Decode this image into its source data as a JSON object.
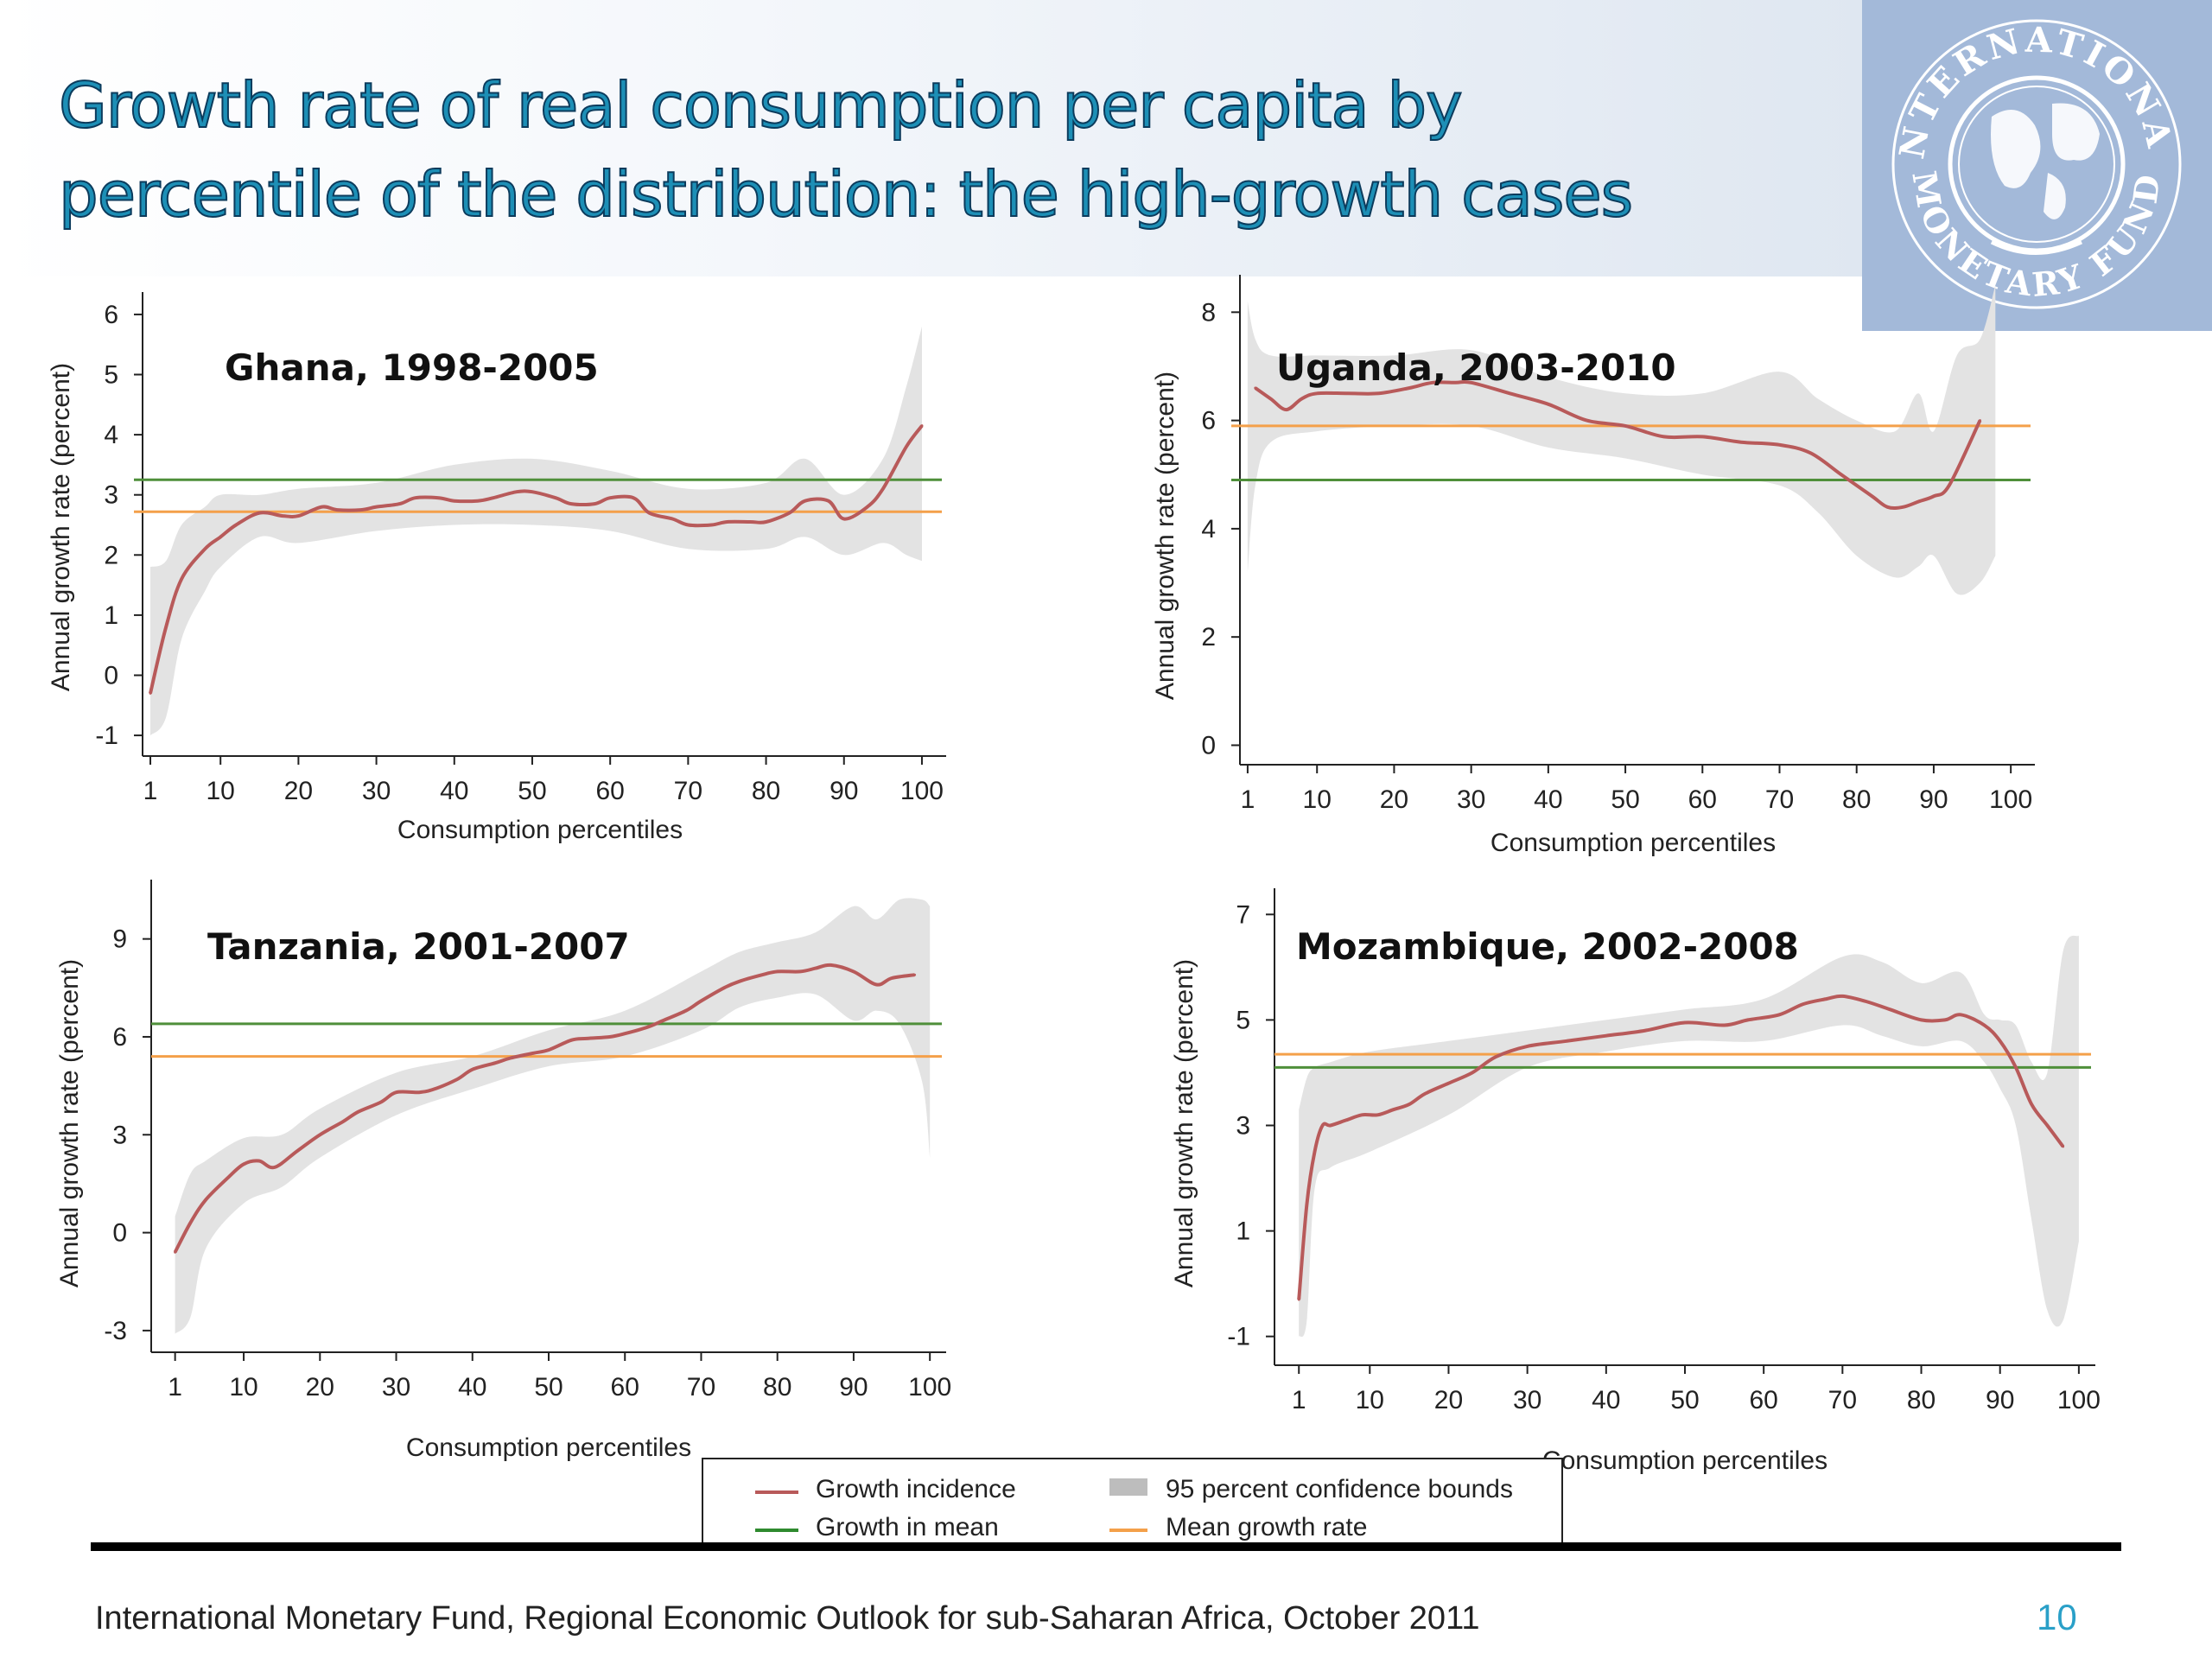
{
  "title_lines": [
    "Growth rate of real consumption per capita by",
    "percentile of the distribution: the high-growth cases"
  ],
  "colors": {
    "incidence": "#b85a5a",
    "mean_growth": "#f4a04a",
    "growth_in_mean": "#4f8f3a",
    "ci": "#e3e3e3",
    "title": "#1d8fb6",
    "page_number": "#2aa0c8"
  },
  "legend": {
    "incidence": "Growth incidence",
    "growth_in_mean": "Growth in mean",
    "ci": "95 percent confidence bounds",
    "mean_growth_rate": "Mean growth rate"
  },
  "source": "International Monetary Fund, Regional Economic Outlook for sub-Saharan Africa, October 2011",
  "page_number": "10",
  "logo": {
    "text_top": "INTERNATIONAL",
    "text_bottom": "MONETARY FUND"
  },
  "chart_data": [
    {
      "id": "ghana",
      "type": "line",
      "title": "Ghana, 1998-2005",
      "xlabel": "Consumption percentiles",
      "ylabel": "Annual growth rate (percent)",
      "xticks": [
        1,
        10,
        20,
        30,
        40,
        50,
        60,
        70,
        80,
        90,
        100
      ],
      "yticks": [
        -1,
        0,
        1,
        2,
        3,
        4,
        5,
        6
      ],
      "xlim": [
        0,
        102
      ],
      "ylim": [
        -1.2,
        6.2
      ],
      "legend": "bottom-center",
      "series": [
        {
          "name": "Growth incidence",
          "x": [
            1,
            3,
            5,
            8,
            10,
            12,
            15,
            18,
            20,
            23,
            25,
            28,
            30,
            33,
            35,
            38,
            40,
            43,
            45,
            48,
            50,
            53,
            55,
            58,
            60,
            63,
            65,
            68,
            70,
            73,
            75,
            78,
            80,
            83,
            85,
            88,
            90,
            93,
            95,
            98,
            100
          ],
          "y": [
            -0.3,
            0.8,
            1.6,
            2.1,
            2.3,
            2.5,
            2.7,
            2.65,
            2.65,
            2.8,
            2.75,
            2.75,
            2.8,
            2.85,
            2.95,
            2.95,
            2.9,
            2.9,
            2.95,
            3.05,
            3.05,
            2.95,
            2.85,
            2.85,
            2.95,
            2.95,
            2.7,
            2.6,
            2.5,
            2.5,
            2.55,
            2.55,
            2.55,
            2.7,
            2.9,
            2.9,
            2.6,
            2.8,
            3.1,
            3.8,
            4.15
          ]
        },
        {
          "name": "95 percent confidence bounds",
          "x": [
            1,
            3,
            5,
            8,
            10,
            15,
            20,
            30,
            40,
            50,
            60,
            70,
            80,
            85,
            90,
            95,
            98,
            100
          ],
          "upper": [
            1.8,
            1.9,
            2.5,
            2.8,
            3.0,
            3.0,
            3.1,
            3.2,
            3.5,
            3.6,
            3.4,
            3.1,
            3.2,
            3.6,
            3.0,
            3.6,
            4.8,
            5.8
          ],
          "lower": [
            -1.0,
            -0.7,
            0.6,
            1.4,
            1.8,
            2.3,
            2.2,
            2.4,
            2.5,
            2.5,
            2.4,
            2.1,
            2.1,
            2.3,
            2.0,
            2.2,
            2.0,
            1.9
          ]
        },
        {
          "name": "Growth in mean",
          "value": 3.25
        },
        {
          "name": "Mean growth rate",
          "value": 2.72
        }
      ]
    },
    {
      "id": "uganda",
      "type": "line",
      "title": "Uganda, 2003-2010",
      "xlabel": "Consumption percentiles",
      "ylabel": "Annual growth rate (percent)",
      "xticks": [
        1,
        10,
        20,
        30,
        40,
        50,
        60,
        70,
        80,
        90,
        100
      ],
      "yticks": [
        0,
        2,
        4,
        6,
        8
      ],
      "xlim": [
        0,
        102
      ],
      "ylim": [
        -0.2,
        8.5
      ],
      "legend": "bottom-center",
      "series": [
        {
          "name": "Growth incidence",
          "x": [
            2,
            4,
            6,
            8,
            10,
            14,
            18,
            22,
            25,
            28,
            30,
            35,
            40,
            45,
            50,
            55,
            60,
            65,
            70,
            74,
            78,
            82,
            84,
            86,
            88,
            90,
            92,
            96
          ],
          "y": [
            6.6,
            6.4,
            6.2,
            6.4,
            6.5,
            6.5,
            6.5,
            6.6,
            6.7,
            6.7,
            6.7,
            6.5,
            6.3,
            6.0,
            5.9,
            5.7,
            5.7,
            5.6,
            5.55,
            5.4,
            5.0,
            4.6,
            4.4,
            4.4,
            4.5,
            4.6,
            4.8,
            6.0
          ],
          "missing_note": ""
        },
        {
          "name": "95 percent confidence bounds",
          "x": [
            1,
            2,
            4,
            10,
            20,
            30,
            40,
            50,
            60,
            70,
            75,
            80,
            85,
            88,
            90,
            93,
            96,
            98
          ],
          "upper": [
            8.2,
            7.5,
            7.2,
            7.2,
            7.2,
            7.3,
            6.8,
            6.5,
            6.5,
            6.9,
            6.4,
            6.0,
            5.8,
            6.5,
            5.8,
            7.2,
            7.5,
            8.5
          ],
          "lower": [
            3.2,
            4.8,
            5.6,
            5.8,
            5.9,
            5.9,
            5.5,
            5.3,
            5.0,
            4.8,
            4.3,
            3.5,
            3.1,
            3.3,
            3.5,
            2.8,
            3.0,
            3.5
          ]
        },
        {
          "name": "Growth in mean",
          "value": 4.9
        },
        {
          "name": "Mean growth rate",
          "value": 5.9
        }
      ]
    },
    {
      "id": "tanzania",
      "type": "line",
      "title": "Tanzania, 2001-2007",
      "xlabel": "Consumption percentiles",
      "ylabel": "Annual growth rate (percent)",
      "xticks": [
        1,
        10,
        20,
        30,
        40,
        50,
        60,
        70,
        80,
        90,
        100
      ],
      "yticks": [
        -3,
        0,
        3,
        6,
        9
      ],
      "xlim": [
        -1,
        101
      ],
      "ylim": [
        -3.4,
        10.5
      ],
      "legend": "bottom-center",
      "series": [
        {
          "name": "Growth incidence",
          "x": [
            1,
            3,
            5,
            8,
            10,
            12,
            14,
            17,
            20,
            23,
            25,
            28,
            30,
            33,
            35,
            38,
            40,
            43,
            45,
            48,
            50,
            53,
            55,
            58,
            60,
            63,
            65,
            68,
            70,
            73,
            75,
            78,
            80,
            83,
            85,
            87,
            90,
            93,
            95,
            98
          ],
          "y": [
            -0.6,
            0.3,
            1.0,
            1.7,
            2.1,
            2.2,
            2.0,
            2.5,
            3.0,
            3.4,
            3.7,
            4.0,
            4.3,
            4.3,
            4.4,
            4.7,
            5.0,
            5.2,
            5.35,
            5.5,
            5.6,
            5.9,
            5.95,
            6.0,
            6.1,
            6.3,
            6.5,
            6.8,
            7.1,
            7.5,
            7.7,
            7.9,
            8.0,
            8.0,
            8.1,
            8.2,
            8.0,
            7.6,
            7.8,
            7.9
          ]
        },
        {
          "name": "95 percent confidence bounds",
          "x": [
            1,
            3,
            5,
            10,
            15,
            20,
            30,
            40,
            50,
            60,
            70,
            75,
            80,
            85,
            90,
            93,
            96,
            99,
            100
          ],
          "upper": [
            0.5,
            1.8,
            2.2,
            2.9,
            3.0,
            3.8,
            4.9,
            5.4,
            6.2,
            6.8,
            8.0,
            8.6,
            8.9,
            9.2,
            10.0,
            9.6,
            10.2,
            10.2,
            10.0
          ],
          "lower": [
            -3.1,
            -2.6,
            -0.5,
            0.9,
            1.4,
            2.3,
            3.6,
            4.4,
            5.1,
            5.4,
            6.2,
            6.9,
            7.2,
            7.3,
            6.5,
            6.8,
            6.4,
            4.6,
            2.3
          ]
        },
        {
          "name": "Growth in mean",
          "value": 6.4
        },
        {
          "name": "Mean growth rate",
          "value": 5.4
        }
      ]
    },
    {
      "id": "mozambique",
      "type": "line",
      "title": "Mozambique, 2002-2008",
      "xlabel": "Consumption percentiles",
      "ylabel": "Annual growth rate (percent)",
      "xticks": [
        1,
        10,
        20,
        30,
        40,
        50,
        60,
        70,
        80,
        90,
        100
      ],
      "yticks": [
        -1,
        1,
        3,
        5,
        7
      ],
      "xlim": [
        -1,
        101
      ],
      "ylim": [
        -1.3,
        7.3
      ],
      "legend": "bottom-center",
      "series": [
        {
          "name": "Growth incidence",
          "x": [
            1,
            2,
            3,
            4,
            5,
            7,
            9,
            11,
            13,
            15,
            17,
            20,
            23,
            26,
            30,
            35,
            40,
            45,
            50,
            55,
            58,
            62,
            65,
            68,
            70,
            73,
            76,
            80,
            83,
            85,
            88,
            90,
            92,
            94,
            96,
            98
          ],
          "y": [
            -0.3,
            1.5,
            2.5,
            3.0,
            3.0,
            3.1,
            3.2,
            3.2,
            3.3,
            3.4,
            3.6,
            3.8,
            4.0,
            4.3,
            4.5,
            4.6,
            4.7,
            4.8,
            4.95,
            4.9,
            5.0,
            5.1,
            5.3,
            5.4,
            5.45,
            5.35,
            5.2,
            5.0,
            5.0,
            5.1,
            4.9,
            4.6,
            4.1,
            3.4,
            3.0,
            2.6
          ]
        },
        {
          "name": "95 percent confidence bounds",
          "x": [
            1,
            2,
            3,
            5,
            10,
            20,
            30,
            40,
            50,
            60,
            70,
            75,
            80,
            85,
            88,
            90,
            92,
            94,
            96,
            98,
            100
          ],
          "upper": [
            3.3,
            3.9,
            4.1,
            4.2,
            4.4,
            4.6,
            4.8,
            5.0,
            5.2,
            5.4,
            6.2,
            6.1,
            5.7,
            5.9,
            5.1,
            5.0,
            4.9,
            4.2,
            4.0,
            6.3,
            6.6
          ],
          "lower": [
            -1.0,
            -0.7,
            1.8,
            2.2,
            2.5,
            3.2,
            4.1,
            4.4,
            4.6,
            4.6,
            4.9,
            4.7,
            4.5,
            4.6,
            4.2,
            3.7,
            3.0,
            1.2,
            -0.5,
            -0.7,
            0.8
          ]
        },
        {
          "name": "Growth in mean",
          "value": 4.1
        },
        {
          "name": "Mean growth rate",
          "value": 4.35
        }
      ]
    }
  ]
}
